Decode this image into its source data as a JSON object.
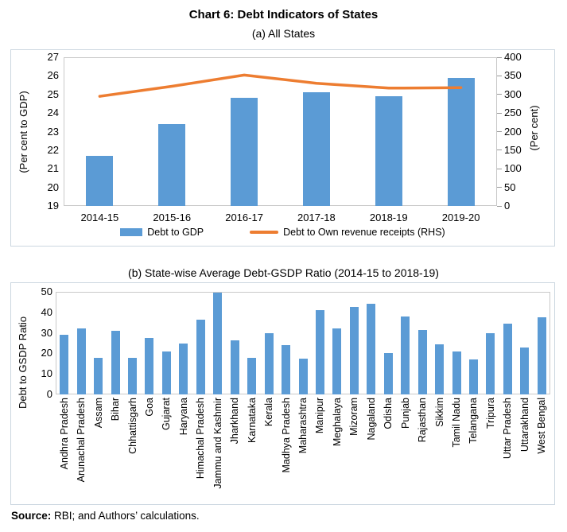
{
  "title": "Chart 6: Debt Indicators of States",
  "source": {
    "bold": "Source:",
    "rest": " RBI; and Authors’ calculations."
  },
  "colors": {
    "bar": "#5B9BD5",
    "line": "#ED7D31",
    "plot_border": "#c9c9c9",
    "panel_border": "#ccd7e0",
    "axis_line": "#9a9a9a",
    "text": "#000000"
  },
  "chart_data": [
    {
      "type": "bar+line",
      "title": "(a) All States",
      "categories": [
        "2014-15",
        "2015-16",
        "2016-17",
        "2017-18",
        "2018-19",
        "2019-20"
      ],
      "series": [
        {
          "name": "Debt to GDP",
          "type": "bar",
          "axis": "left",
          "values": [
            21.7,
            23.4,
            24.8,
            25.1,
            24.9,
            25.9
          ]
        },
        {
          "name": "Debt to Own revenue receipts (RHS)",
          "type": "line",
          "axis": "right",
          "values": [
            295,
            322,
            352,
            330,
            317,
            318
          ]
        }
      ],
      "left_ylabel": "(Per cent to GDP)",
      "right_ylabel": "(Per cent)",
      "left_ylim": [
        19,
        27
      ],
      "left_yticks": [
        19,
        20,
        21,
        22,
        23,
        24,
        25,
        26,
        27
      ],
      "right_ylim": [
        0,
        400
      ],
      "right_yticks": [
        0,
        50,
        100,
        150,
        200,
        250,
        300,
        350,
        400
      ],
      "grid": false,
      "legend_position": "bottom"
    },
    {
      "type": "bar",
      "title": "(b) State-wise Average Debt-GSDP Ratio (2014-15 to 2018-19)",
      "categories": [
        "Andhra Pradesh",
        "Arunachal Pradesh",
        "Assam",
        "Bihar",
        "Chhattisgarh",
        "Goa",
        "Gujarat",
        "Haryana",
        "Himachal Pradesh",
        "Jammu and Kashmir",
        "Jharkhand",
        "Karnataka",
        "Kerala",
        "Madhya Pradesh",
        "Maharashtra",
        "Manipur",
        "Meghalaya",
        "Mizoram",
        "Nagaland",
        "Odisha",
        "Punjab",
        "Rajasthan",
        "Sikkim",
        "Tamil Nadu",
        "Telangana",
        "Tripura",
        "Uttar Pradesh",
        "Uttarakhand",
        "West Bengal"
      ],
      "values": [
        29,
        32,
        18,
        31,
        18,
        27.5,
        21,
        25,
        36.5,
        49.5,
        26.5,
        18,
        30,
        24,
        17.5,
        41,
        32,
        42.5,
        44,
        20,
        38,
        31.5,
        24.5,
        21,
        17,
        30,
        34.5,
        23,
        37.5
      ],
      "ylabel": "Debt to GSDP Ratio",
      "xlabel": "",
      "ylim": [
        0,
        50
      ],
      "yticks": [
        0,
        10,
        20,
        30,
        40,
        50
      ],
      "grid": false
    }
  ]
}
